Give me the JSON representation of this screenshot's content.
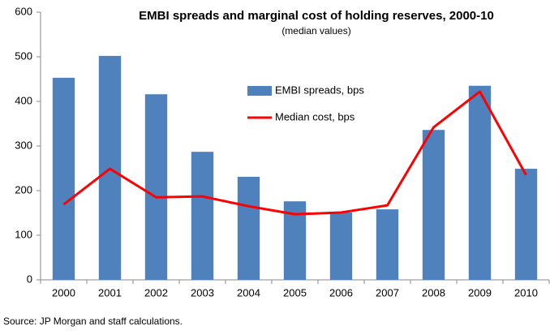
{
  "chart_data": {
    "type": "bar",
    "title": "EMBI spreads and marginal cost of holding reserves, 2000-10",
    "subtitle": "(median values)",
    "source": "Source: JP Morgan and staff calculations.",
    "categories": [
      "2000",
      "2001",
      "2002",
      "2003",
      "2004",
      "2005",
      "2006",
      "2007",
      "2008",
      "2009",
      "2010"
    ],
    "series": [
      {
        "name": "EMBI spreads, bps",
        "type": "bar",
        "color": "#4f81bd",
        "values": [
          453,
          502,
          416,
          287,
          231,
          176,
          151,
          158,
          336,
          435,
          249
        ]
      },
      {
        "name": "Median cost, bps",
        "type": "line",
        "color": "#ff0000",
        "values": [
          169,
          249,
          185,
          187,
          165,
          147,
          151,
          167,
          342,
          422,
          235
        ]
      }
    ],
    "ylim": [
      0,
      600
    ],
    "yticks": [
      0,
      100,
      200,
      300,
      400,
      500,
      600
    ],
    "grid": false,
    "legend": "center"
  }
}
